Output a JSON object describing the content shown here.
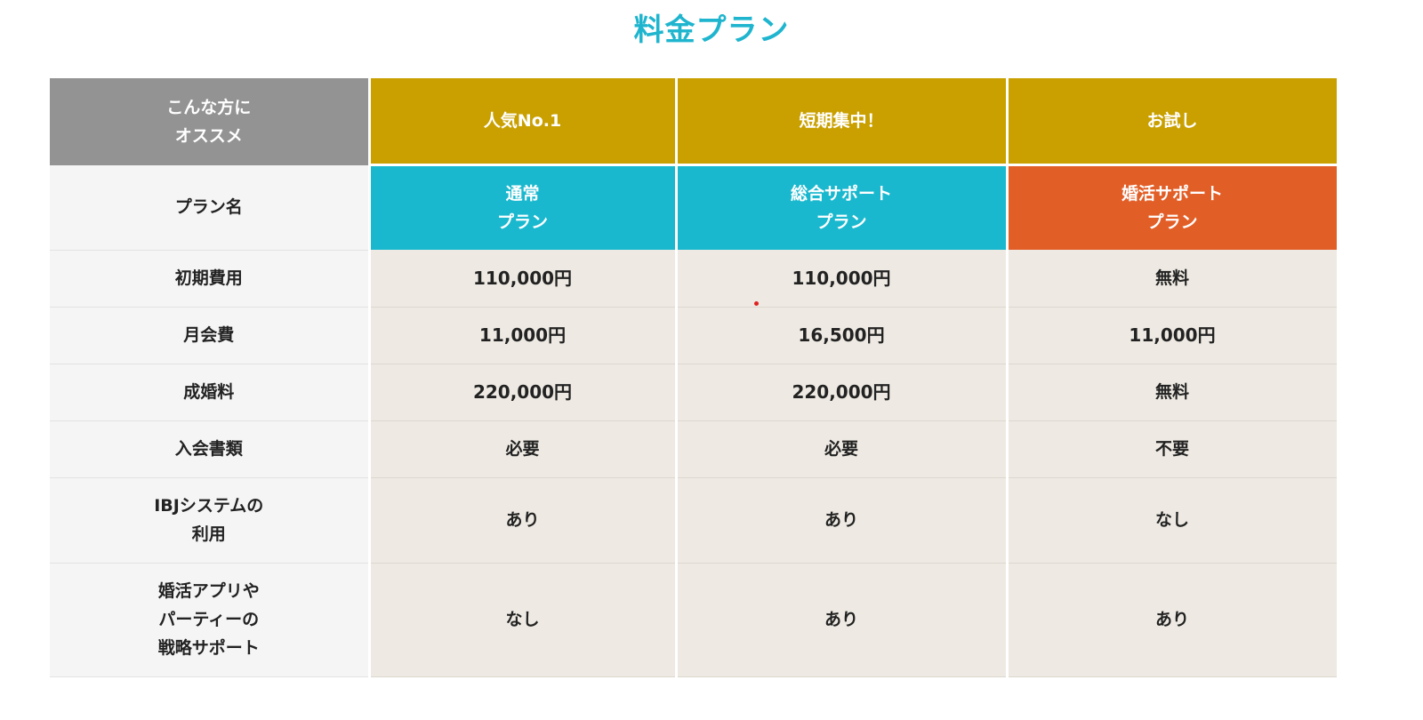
{
  "title": "料金プラン",
  "colors": {
    "title": "#1fb5ce",
    "badge": "#c9a000",
    "label_header": "#939393",
    "plan_blue": "#1ab8ce",
    "plan_orange": "#e25e27"
  },
  "table": {
    "recommend_label": "こんな方に\nオススメ",
    "recommend": [
      "人気No.1",
      "短期集中！",
      "お試し"
    ],
    "plan_label": "プラン名",
    "plans": [
      "通常\nプラン",
      "総合サポート\nプラン",
      "婚活サポート\nプラン"
    ],
    "rows": [
      {
        "label": "初期費用",
        "values": [
          "110,000円",
          "110,000円",
          "無料"
        ]
      },
      {
        "label": "月会費",
        "values": [
          "11,000円",
          "16,500円",
          "11,000円"
        ]
      },
      {
        "label": "成婚料",
        "values": [
          "220,000円",
          "220,000円",
          "無料"
        ]
      },
      {
        "label": "入会書類",
        "values": [
          "必要",
          "必要",
          "不要"
        ]
      },
      {
        "label": "IBJシステムの\n利用",
        "values": [
          "あり",
          "あり",
          "なし"
        ]
      },
      {
        "label": "婚活アプリや\nパーティーの\n戦略サポート",
        "values": [
          "なし",
          "あり",
          "あり"
        ]
      }
    ]
  }
}
